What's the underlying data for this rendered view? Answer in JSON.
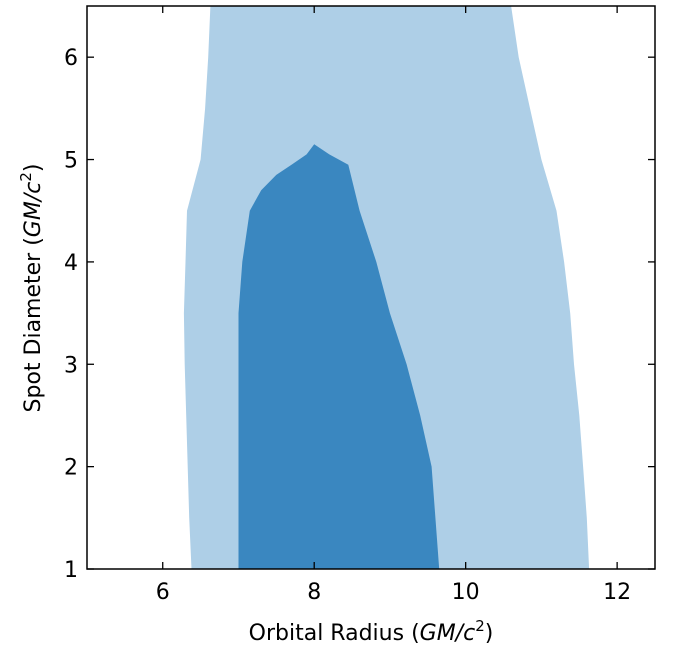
{
  "chart_data": {
    "type": "contour",
    "title": "",
    "xlabel": {
      "prefix": "Orbital Radius (",
      "unit": "GM/c",
      "superscript": "2",
      "suffix": ")"
    },
    "ylabel": {
      "prefix": "Spot Diameter (",
      "unit": "GM/c",
      "superscript": "2",
      "suffix": ")"
    },
    "xlim": [
      5,
      12.5
    ],
    "ylim": [
      1,
      6.5
    ],
    "xticks": [
      6,
      8,
      10,
      12
    ],
    "yticks": [
      1,
      2,
      3,
      4,
      5,
      6
    ],
    "xtick_labels": [
      "6",
      "8",
      "10",
      "12"
    ],
    "ytick_labels": [
      "1",
      "2",
      "3",
      "4",
      "5",
      "6"
    ],
    "grid": false,
    "legend": "none",
    "colors": {
      "outer_region": "#aecfe7",
      "inner_region": "#3a87c0",
      "axes": "#000000"
    },
    "regions": [
      {
        "level": "outer",
        "points": [
          [
            6.38,
            1.0
          ],
          [
            6.35,
            1.5
          ],
          [
            6.33,
            2.0
          ],
          [
            6.31,
            2.5
          ],
          [
            6.29,
            3.0
          ],
          [
            6.28,
            3.5
          ],
          [
            6.3,
            4.0
          ],
          [
            6.32,
            4.5
          ],
          [
            6.5,
            5.0
          ],
          [
            6.56,
            5.5
          ],
          [
            6.6,
            6.0
          ],
          [
            6.63,
            6.5
          ],
          [
            10.6,
            6.5
          ],
          [
            10.7,
            6.0
          ],
          [
            10.85,
            5.5
          ],
          [
            11.0,
            5.0
          ],
          [
            11.2,
            4.5
          ],
          [
            11.3,
            4.0
          ],
          [
            11.38,
            3.5
          ],
          [
            11.43,
            3.0
          ],
          [
            11.5,
            2.5
          ],
          [
            11.55,
            2.0
          ],
          [
            11.6,
            1.5
          ],
          [
            11.63,
            1.0
          ]
        ]
      },
      {
        "level": "inner",
        "points": [
          [
            7.0,
            1.0
          ],
          [
            7.0,
            1.5
          ],
          [
            7.0,
            2.0
          ],
          [
            7.0,
            2.5
          ],
          [
            7.0,
            3.0
          ],
          [
            7.0,
            3.5
          ],
          [
            7.05,
            4.0
          ],
          [
            7.15,
            4.5
          ],
          [
            7.3,
            4.7
          ],
          [
            7.5,
            4.85
          ],
          [
            7.7,
            4.95
          ],
          [
            7.9,
            5.05
          ],
          [
            8.0,
            5.15
          ],
          [
            8.2,
            5.05
          ],
          [
            8.45,
            4.95
          ],
          [
            8.6,
            4.5
          ],
          [
            8.82,
            4.0
          ],
          [
            9.0,
            3.5
          ],
          [
            9.22,
            3.0
          ],
          [
            9.4,
            2.5
          ],
          [
            9.55,
            2.0
          ],
          [
            9.6,
            1.5
          ],
          [
            9.65,
            1.0
          ]
        ]
      }
    ]
  }
}
